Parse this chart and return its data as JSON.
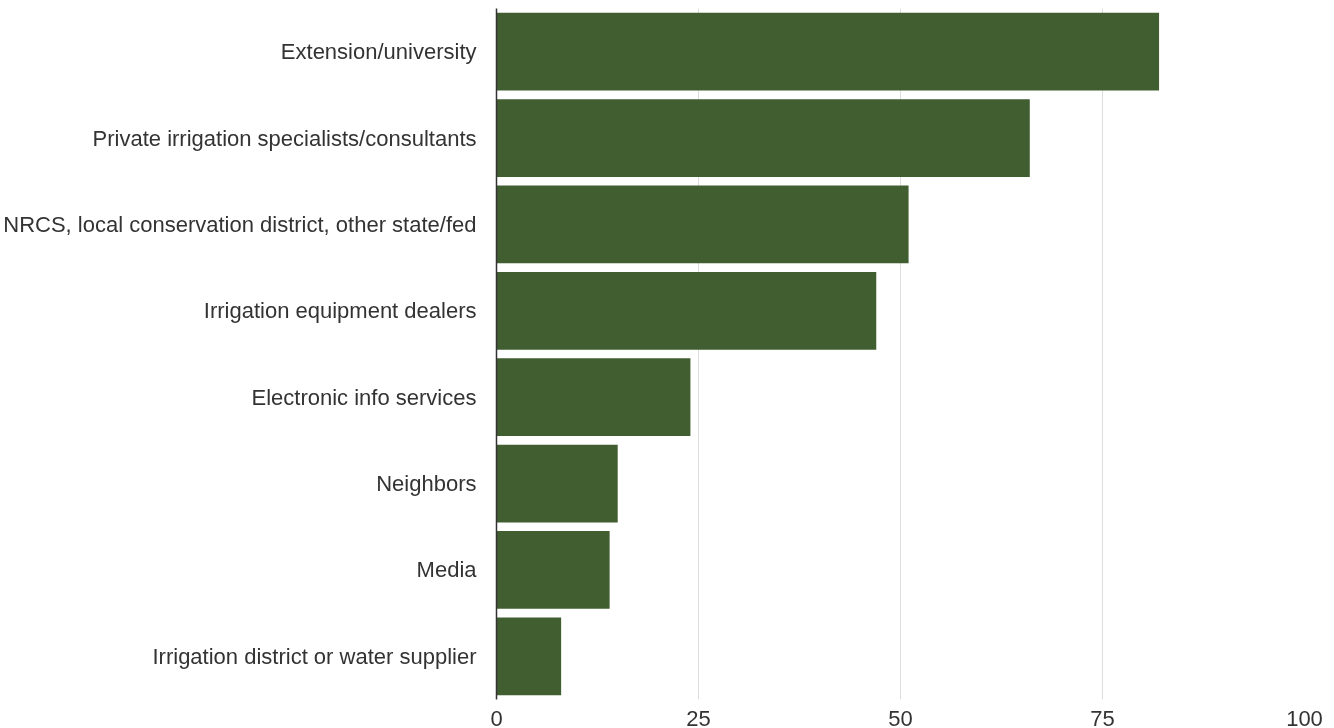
{
  "chart_data": {
    "type": "bar",
    "orientation": "horizontal",
    "categories": [
      "Extension/university",
      "Private irrigation specialists/consultants",
      "NRCS, local conservation district, other state/fed",
      "Irrigation equipment dealers",
      "Electronic info services",
      "Neighbors",
      "Media",
      "Irrigation district or water supplier"
    ],
    "values": [
      82,
      66,
      51,
      47,
      24,
      15,
      14,
      8
    ],
    "color": "#405e30",
    "xlim": [
      0,
      100
    ],
    "xticks": [
      0,
      25,
      50,
      75,
      100
    ],
    "grid": "x"
  }
}
